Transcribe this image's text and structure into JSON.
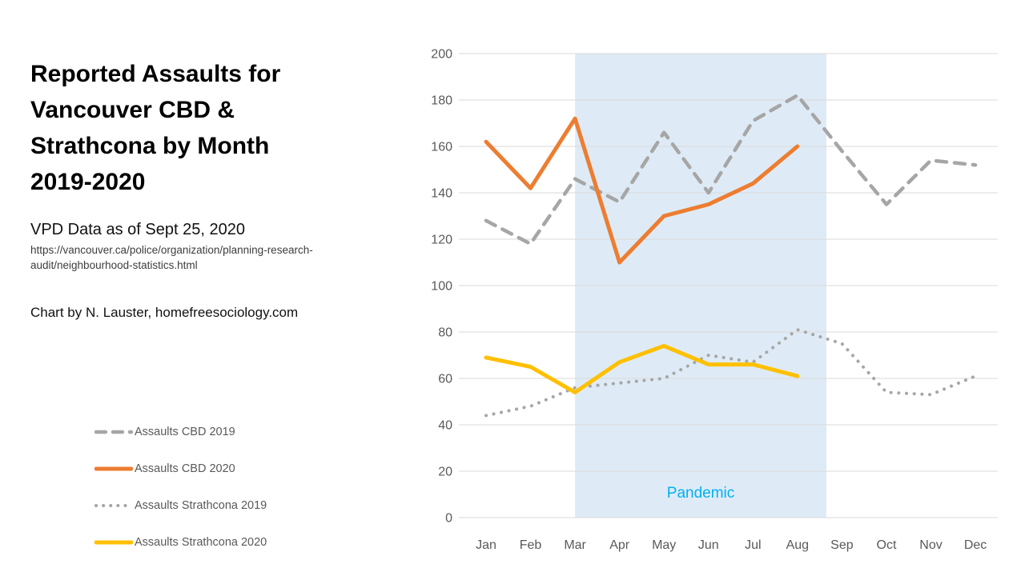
{
  "header": {
    "title_lines": [
      "Reported Assaults for",
      "Vancouver CBD &",
      "Strathcona by Month",
      "2019-2020"
    ],
    "subtitle": "VPD Data as of Sept 25, 2020",
    "source_url_lines": [
      "https://vancouver.ca/police/organization/planning-research-",
      "audit/neighbourhood-statistics.html"
    ],
    "credit": "Chart by N. Lauster, homefreesociology.com"
  },
  "colors": {
    "grid": "#d9d9d9",
    "axis_text": "#595959",
    "orange": "#ED7D31",
    "gold": "#FFC000",
    "gray_line": "#A6A6A6",
    "band_fill": "#DEEBF6",
    "pandemic_text": "#00B0F0"
  },
  "chart_data": {
    "type": "line",
    "title": "Reported Assaults for Vancouver CBD & Strathcona by Month 2019-2020",
    "categories": [
      "Jan",
      "Feb",
      "Mar",
      "Apr",
      "May",
      "Jun",
      "Jul",
      "Aug",
      "Sep",
      "Oct",
      "Nov",
      "Dec"
    ],
    "xlabel": "",
    "ylabel": "",
    "ylim": [
      0,
      200
    ],
    "ytick_step": 20,
    "grid": true,
    "legend_position": "bottom-left",
    "band": {
      "label": "Pandemic",
      "x_start": 2,
      "x_end": 7.65,
      "note": "shaded region from Mar to between Aug and Sep",
      "color": "#DEEBF6",
      "label_color": "#00B0F0"
    },
    "series": [
      {
        "name": "Assaults CBD 2019",
        "style": "dashed",
        "color": "#A6A6A6",
        "values": [
          128,
          118,
          146,
          136,
          166,
          140,
          171,
          182,
          158,
          135,
          154,
          152
        ]
      },
      {
        "name": "Assaults CBD 2020",
        "style": "solid",
        "color": "#ED7D31",
        "values": [
          162,
          142,
          172,
          110,
          130,
          135,
          144,
          160
        ]
      },
      {
        "name": "Assaults Strathcona 2019",
        "style": "dotted",
        "color": "#A6A6A6",
        "values": [
          44,
          48,
          56,
          58,
          60,
          70,
          67,
          81,
          75,
          54,
          53,
          61
        ]
      },
      {
        "name": "Assaults Strathcona 2020",
        "style": "solid",
        "color": "#FFC000",
        "values": [
          69,
          65,
          54,
          67,
          74,
          66,
          66,
          61
        ]
      }
    ]
  }
}
